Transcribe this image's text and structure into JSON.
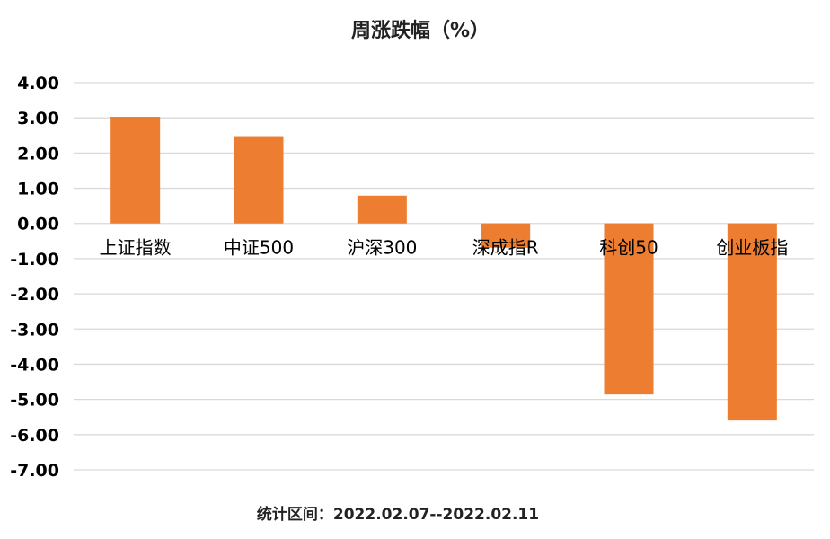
{
  "chart_data": {
    "type": "bar",
    "title": "周涨跌幅（%）",
    "footnote": "统计区间：2022.02.07--2022.02.11",
    "categories": [
      "上证指数",
      "中证500",
      "沪深300",
      "深成指R",
      "科创50",
      "创业板指"
    ],
    "values": [
      3.03,
      2.48,
      0.79,
      -0.69,
      -4.86,
      -5.6
    ],
    "ylim": [
      -7,
      4
    ],
    "yticks": [
      "4.00",
      "3.00",
      "2.00",
      "1.00",
      "0.00",
      "-1.00",
      "-2.00",
      "-3.00",
      "-4.00",
      "-5.00",
      "-6.00",
      "-7.00"
    ],
    "grid": true,
    "legend": "none",
    "bar_color": "#ED7D31",
    "grid_color": "#D9D9D9"
  }
}
